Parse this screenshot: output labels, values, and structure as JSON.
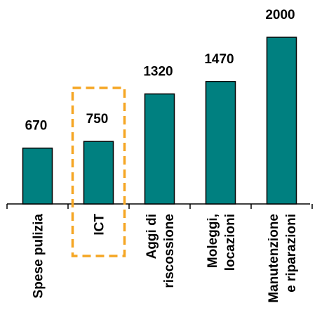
{
  "chart_data": {
    "type": "bar",
    "categories": [
      "Spese pulizia",
      "ICT",
      "Aggi di riscossione",
      "Moleggi, locazioni",
      "Manutenzione e riparazioni"
    ],
    "category_lines": [
      [
        "Spese pulizia"
      ],
      [
        "ICT"
      ],
      [
        "Aggi di",
        "riscossione"
      ],
      [
        "Moleggi,",
        "locazioni"
      ],
      [
        "Manutenzione",
        "e riparazioni"
      ]
    ],
    "values": [
      670,
      750,
      1320,
      1470,
      2000
    ],
    "value_labels": [
      "670",
      "750",
      "1320",
      "1470",
      "2000"
    ],
    "ylim": [
      0,
      2000
    ],
    "bar_color": "#008080",
    "highlight_color": "#F5A623",
    "highlight_category": "ICT",
    "grid": false,
    "title": "",
    "xlabel": "",
    "ylabel": ""
  }
}
